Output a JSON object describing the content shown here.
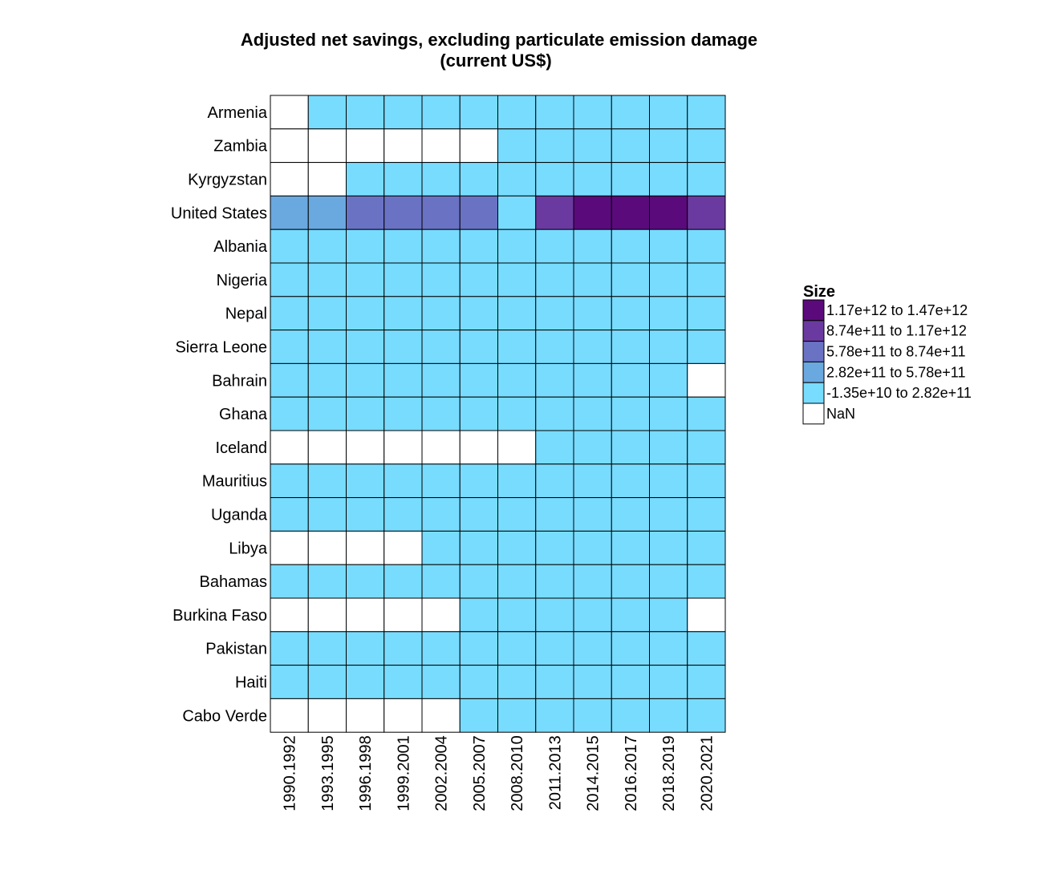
{
  "chart_data": {
    "type": "heatmap",
    "title": "Adjusted net savings, excluding particulate emission damage",
    "subtitle": "(current US$)",
    "xlabel": "",
    "ylabel": "",
    "legend_title": "Size",
    "legend_placement": "right",
    "columns": [
      "1990.1992",
      "1993.1995",
      "1996.1998",
      "1999.2001",
      "2002.2004",
      "2005.2007",
      "2008.2010",
      "2011.2013",
      "2014.2015",
      "2016.2017",
      "2018.2019",
      "2020.2021"
    ],
    "rows": [
      "Armenia",
      "Zambia",
      "Kyrgyzstan",
      "United States",
      "Albania",
      "Nigeria",
      "Nepal",
      "Sierra Leone",
      "Bahrain",
      "Ghana",
      "Iceland",
      "Mauritius",
      "Uganda",
      "Libya",
      "Bahamas",
      "Burkina Faso",
      "Pakistan",
      "Haiti",
      "Cabo Verde"
    ],
    "bins": [
      {
        "label": "1.17e+12 to 1.47e+12",
        "color": "#5b0a7c"
      },
      {
        "label": "8.74e+11 to 1.17e+12",
        "color": "#6a3aa0"
      },
      {
        "label": "5.78e+11 to 8.74e+11",
        "color": "#6a72c4"
      },
      {
        "label": "2.82e+11 to 5.78e+11",
        "color": "#6aa8e0"
      },
      {
        "label": "-1.35e+10 to 2.82e+11",
        "color": "#78dcff"
      },
      {
        "label": "NaN",
        "color": "#ffffff"
      }
    ],
    "cells": [
      [
        5,
        4,
        4,
        4,
        4,
        4,
        4,
        4,
        4,
        4,
        4,
        4
      ],
      [
        5,
        5,
        5,
        5,
        5,
        5,
        4,
        4,
        4,
        4,
        4,
        4
      ],
      [
        5,
        5,
        4,
        4,
        4,
        4,
        4,
        4,
        4,
        4,
        4,
        4
      ],
      [
        3,
        3,
        2,
        2,
        2,
        2,
        4,
        1,
        0,
        0,
        0,
        1
      ],
      [
        4,
        4,
        4,
        4,
        4,
        4,
        4,
        4,
        4,
        4,
        4,
        4
      ],
      [
        4,
        4,
        4,
        4,
        4,
        4,
        4,
        4,
        4,
        4,
        4,
        4
      ],
      [
        4,
        4,
        4,
        4,
        4,
        4,
        4,
        4,
        4,
        4,
        4,
        4
      ],
      [
        4,
        4,
        4,
        4,
        4,
        4,
        4,
        4,
        4,
        4,
        4,
        4
      ],
      [
        4,
        4,
        4,
        4,
        4,
        4,
        4,
        4,
        4,
        4,
        4,
        5
      ],
      [
        4,
        4,
        4,
        4,
        4,
        4,
        4,
        4,
        4,
        4,
        4,
        4
      ],
      [
        5,
        5,
        5,
        5,
        5,
        5,
        5,
        4,
        4,
        4,
        4,
        4
      ],
      [
        4,
        4,
        4,
        4,
        4,
        4,
        4,
        4,
        4,
        4,
        4,
        4
      ],
      [
        4,
        4,
        4,
        4,
        4,
        4,
        4,
        4,
        4,
        4,
        4,
        4
      ],
      [
        5,
        5,
        5,
        5,
        4,
        4,
        4,
        4,
        4,
        4,
        4,
        4
      ],
      [
        4,
        4,
        4,
        4,
        4,
        4,
        4,
        4,
        4,
        4,
        4,
        4
      ],
      [
        5,
        5,
        5,
        5,
        5,
        4,
        4,
        4,
        4,
        4,
        4,
        5
      ],
      [
        4,
        4,
        4,
        4,
        4,
        4,
        4,
        4,
        4,
        4,
        4,
        4
      ],
      [
        4,
        4,
        4,
        4,
        4,
        4,
        4,
        4,
        4,
        4,
        4,
        4
      ],
      [
        5,
        5,
        5,
        5,
        5,
        4,
        4,
        4,
        4,
        4,
        4,
        4
      ]
    ]
  }
}
